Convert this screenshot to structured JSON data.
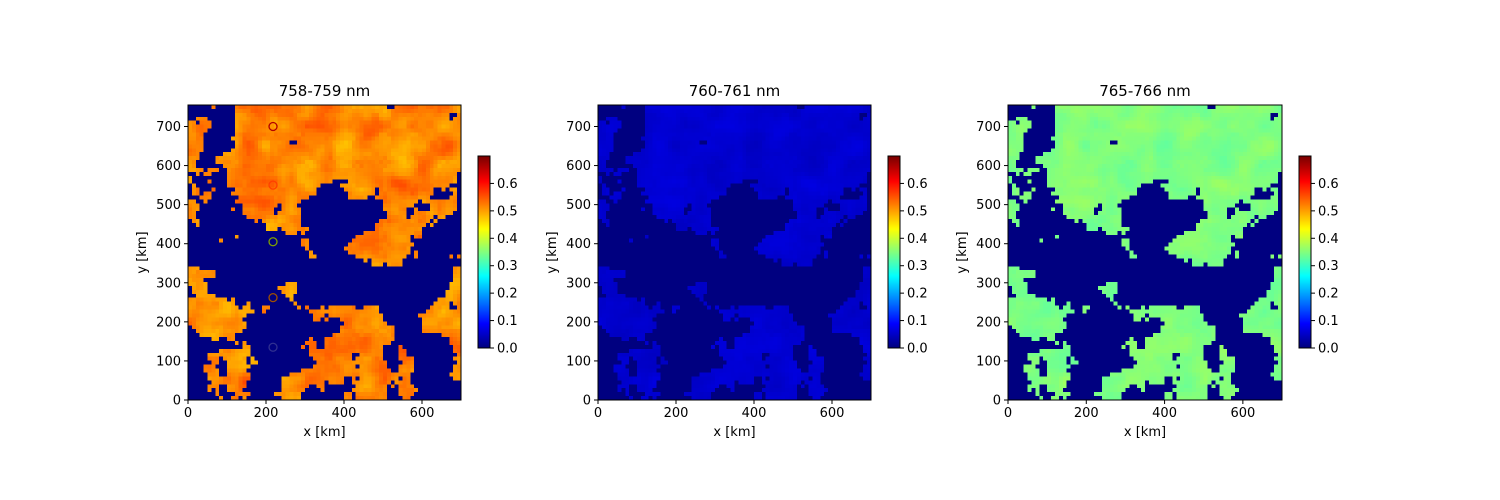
{
  "chart_data": [
    {
      "type": "heatmap",
      "title": "758-759 nm",
      "xlabel": "x [km]",
      "ylabel": "y [km]",
      "xlim": [
        0,
        700
      ],
      "ylim": [
        0,
        755
      ],
      "xticks": [
        0,
        200,
        400,
        600
      ],
      "yticks": [
        0,
        100,
        200,
        300,
        400,
        500,
        600,
        700
      ],
      "colormap": "jet",
      "colorbar": {
        "range": [
          0,
          0.7
        ],
        "ticks": [
          "0.0",
          "0.1",
          "0.2",
          "0.3",
          "0.4",
          "0.5",
          "0.6"
        ]
      },
      "field": {
        "clear_value": 0.0,
        "cloud_value": 0.52,
        "cloud_variation": 0.1
      },
      "markers": [
        {
          "x": 218,
          "y": 700,
          "color": "#b30000"
        },
        {
          "x": 218,
          "y": 550,
          "color": "#ff4000"
        },
        {
          "x": 218,
          "y": 405,
          "color": "#7fa000"
        },
        {
          "x": 218,
          "y": 262,
          "color": "#a05000"
        },
        {
          "x": 218,
          "y": 135,
          "color": "#303090"
        }
      ]
    },
    {
      "type": "heatmap",
      "title": "760-761 nm",
      "xlabel": "x [km]",
      "ylabel": "y [km]",
      "xlim": [
        0,
        700
      ],
      "ylim": [
        0,
        755
      ],
      "xticks": [
        0,
        200,
        400,
        600
      ],
      "yticks": [
        0,
        100,
        200,
        300,
        400,
        500,
        600,
        700
      ],
      "colormap": "jet",
      "colorbar": {
        "range": [
          0,
          0.7
        ],
        "ticks": [
          "0.0",
          "0.1",
          "0.2",
          "0.3",
          "0.4",
          "0.5",
          "0.6"
        ]
      },
      "field": {
        "clear_value": 0.0,
        "cloud_value": 0.055,
        "cloud_variation": 0.03
      },
      "markers": []
    },
    {
      "type": "heatmap",
      "title": "765-766 nm",
      "xlabel": "x [km]",
      "ylabel": "y [km]",
      "xlim": [
        0,
        700
      ],
      "ylim": [
        0,
        755
      ],
      "xticks": [
        0,
        200,
        400,
        600
      ],
      "yticks": [
        0,
        100,
        200,
        300,
        400,
        500,
        600,
        700
      ],
      "colormap": "jet",
      "colorbar": {
        "range": [
          0,
          0.7
        ],
        "ticks": [
          "0.0",
          "0.1",
          "0.2",
          "0.3",
          "0.4",
          "0.5",
          "0.6"
        ]
      },
      "field": {
        "clear_value": 0.0,
        "cloud_value": 0.35,
        "cloud_variation": 0.05
      },
      "markers": []
    }
  ]
}
